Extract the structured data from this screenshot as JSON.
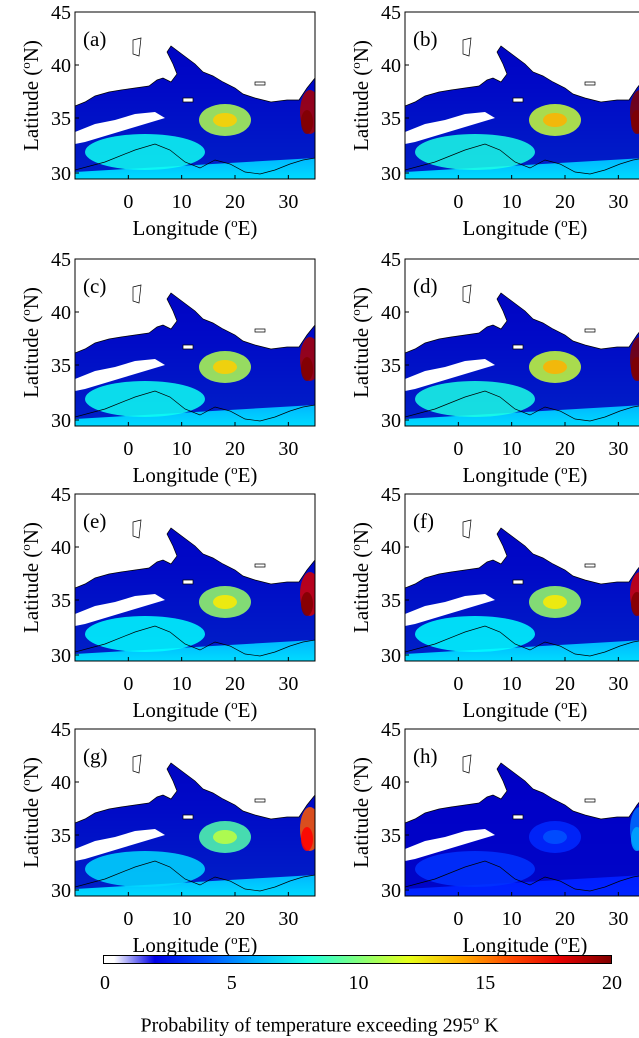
{
  "panels": [
    {
      "label": "(a)",
      "hot": 0.95
    },
    {
      "label": "(b)",
      "hot": 1.0
    },
    {
      "label": "(c)",
      "hot": 0.95
    },
    {
      "label": "(d)",
      "hot": 1.0
    },
    {
      "label": "(e)",
      "hot": 0.9
    },
    {
      "label": "(f)",
      "hot": 0.9
    },
    {
      "label": "(g)",
      "hot": 0.75
    },
    {
      "label": "(h)",
      "hot": 0.1
    }
  ],
  "axes": {
    "y_label": "Latitude (",
    "y_label_sup": "o",
    "y_label_end": "N)",
    "x_label": "Longitude (",
    "x_label_sup": "o",
    "x_label_end": "E)",
    "y_ticks": [
      "45",
      "40",
      "35",
      "30"
    ],
    "x_ticks": [
      "0",
      "10",
      "20",
      "30"
    ],
    "x_range_deg": [
      -10,
      35
    ],
    "y_range_deg": [
      30,
      45
    ]
  },
  "colorbar": {
    "ticks": [
      "0",
      "5",
      "10",
      "15",
      "20"
    ],
    "range": [
      0,
      20
    ],
    "title_main": "Probability of temperature exceeding 295",
    "title_sup": "o",
    "title_unit": " K",
    "colormap": "jet"
  }
}
